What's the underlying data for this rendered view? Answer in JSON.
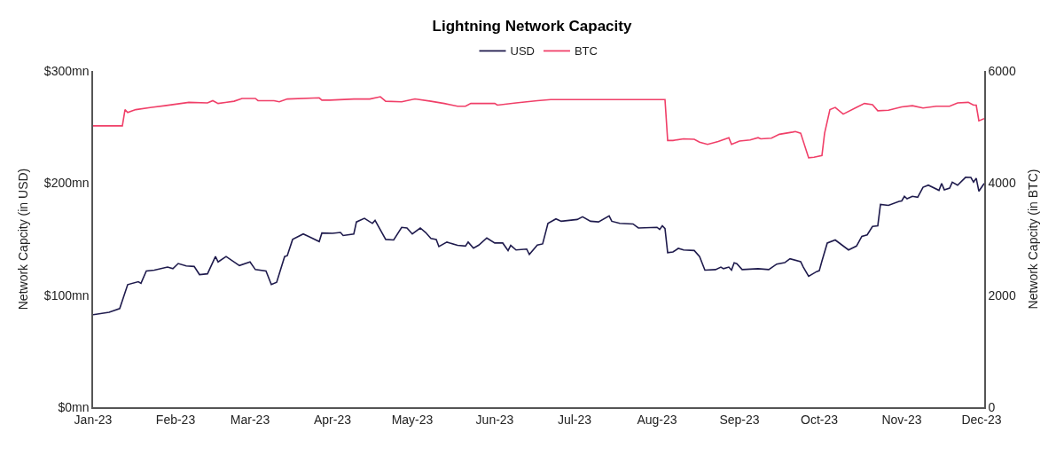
{
  "chart_data": {
    "type": "line",
    "title": "Lightning Network Capacity",
    "ylabel": "Network Capcity (in USD)",
    "y2label": "Network Capcity (in BTC)",
    "xlim": [
      "2023-01-01",
      "2023-12-02"
    ],
    "xticks": [
      {
        "value": "2023-01-01",
        "label": "Jan-23"
      },
      {
        "value": "2023-02-01",
        "label": "Feb-23"
      },
      {
        "value": "2023-03-01",
        "label": "Mar-23"
      },
      {
        "value": "2023-04-01",
        "label": "Apr-23"
      },
      {
        "value": "2023-05-01",
        "label": "May-23"
      },
      {
        "value": "2023-06-01",
        "label": "Jun-23"
      },
      {
        "value": "2023-07-01",
        "label": "Jul-23"
      },
      {
        "value": "2023-08-01",
        "label": "Aug-23"
      },
      {
        "value": "2023-09-01",
        "label": "Sep-23"
      },
      {
        "value": "2023-10-01",
        "label": "Oct-23"
      },
      {
        "value": "2023-11-01",
        "label": "Nov-23"
      },
      {
        "value": "2023-12-01",
        "label": "Dec-23"
      }
    ],
    "ylim": [
      0,
      300
    ],
    "yticks": [
      {
        "value": 0,
        "label": "$0mn"
      },
      {
        "value": 100,
        "label": "$100mn"
      },
      {
        "value": 200,
        "label": "$200mn"
      },
      {
        "value": 300,
        "label": "$300mn"
      }
    ],
    "y2lim": [
      0,
      6000
    ],
    "y2ticks": [
      0,
      2000,
      4000,
      6000
    ],
    "legend": "top",
    "marker": "none",
    "line_style": "solid",
    "series": [
      {
        "name": "USD",
        "color": "#1f1b4d",
        "x": [
          "2023-01-01",
          "2023-01-07",
          "2023-01-11",
          "2023-01-14",
          "2023-01-18",
          "2023-01-19",
          "2023-01-21",
          "2023-01-24",
          "2023-01-29",
          "2023-01-31",
          "2023-02-02",
          "2023-02-05",
          "2023-02-08",
          "2023-02-10",
          "2023-02-13",
          "2023-02-16",
          "2023-02-17",
          "2023-02-20",
          "2023-02-25",
          "2023-03-01",
          "2023-03-03",
          "2023-03-07",
          "2023-03-09",
          "2023-03-11",
          "2023-03-14",
          "2023-03-15",
          "2023-03-17",
          "2023-03-21",
          "2023-03-23",
          "2023-03-27",
          "2023-03-28",
          "2023-04-01",
          "2023-04-04",
          "2023-04-05",
          "2023-04-09",
          "2023-04-10",
          "2023-04-13",
          "2023-04-16",
          "2023-04-17",
          "2023-04-21",
          "2023-04-24",
          "2023-04-27",
          "2023-04-29",
          "2023-05-01",
          "2023-05-04",
          "2023-05-06",
          "2023-05-08",
          "2023-05-10",
          "2023-05-11",
          "2023-05-14",
          "2023-05-18",
          "2023-05-21",
          "2023-05-22",
          "2023-05-24",
          "2023-05-26",
          "2023-05-29",
          "2023-06-01",
          "2023-06-04",
          "2023-06-06",
          "2023-06-07",
          "2023-06-09",
          "2023-06-13",
          "2023-06-14",
          "2023-06-17",
          "2023-06-19",
          "2023-06-21",
          "2023-06-24",
          "2023-06-26",
          "2023-06-29",
          "2023-07-02",
          "2023-07-04",
          "2023-07-07",
          "2023-07-10",
          "2023-07-14",
          "2023-07-15",
          "2023-07-18",
          "2023-07-23",
          "2023-07-25",
          "2023-08-01",
          "2023-08-02",
          "2023-08-03",
          "2023-08-04",
          "2023-08-05",
          "2023-08-07",
          "2023-08-09",
          "2023-08-11",
          "2023-08-15",
          "2023-08-17",
          "2023-08-19",
          "2023-08-23",
          "2023-08-25",
          "2023-08-26",
          "2023-08-28",
          "2023-08-29",
          "2023-08-30",
          "2023-08-31",
          "2023-09-02",
          "2023-09-08",
          "2023-09-12",
          "2023-09-15",
          "2023-09-18",
          "2023-09-20",
          "2023-09-24",
          "2023-09-25",
          "2023-09-27",
          "2023-09-30",
          "2023-10-01",
          "2023-10-02",
          "2023-10-04",
          "2023-10-07",
          "2023-10-12",
          "2023-10-15",
          "2023-10-17",
          "2023-10-19",
          "2023-10-21",
          "2023-10-23",
          "2023-10-24",
          "2023-10-27",
          "2023-10-31",
          "2023-11-01",
          "2023-11-02",
          "2023-11-03",
          "2023-11-05",
          "2023-11-07",
          "2023-11-09",
          "2023-11-11",
          "2023-11-15",
          "2023-11-16",
          "2023-11-17",
          "2023-11-19",
          "2023-11-20",
          "2023-11-22",
          "2023-11-25",
          "2023-11-27",
          "2023-11-28",
          "2023-11-29",
          "2023-11-30",
          "2023-12-02"
        ],
        "values": [
          82.5,
          84.7,
          88,
          109.4,
          112,
          110.5,
          121.5,
          122.3,
          125,
          123.6,
          128.2,
          126,
          125.6,
          118.3,
          119,
          134.4,
          129.6,
          134.4,
          126.4,
          129.6,
          122.8,
          121.5,
          109.4,
          111.5,
          134.4,
          135.2,
          149.7,
          154.6,
          152.4,
          147.8,
          155.4,
          155.1,
          155.9,
          153.2,
          154.6,
          165.3,
          168.5,
          164,
          166.7,
          149.7,
          149.2,
          160.5,
          159.9,
          154.6,
          159.9,
          155.9,
          150.5,
          149.7,
          143.3,
          147.3,
          144.4,
          143.8,
          147.3,
          141.9,
          144.6,
          151,
          146.5,
          146.5,
          139.8,
          144.4,
          140.3,
          141.1,
          136.3,
          144.6,
          145.7,
          164,
          168,
          165.9,
          166.7,
          167.5,
          169.9,
          165.9,
          165.3,
          170.7,
          165.9,
          164,
          163.5,
          159.9,
          160.5,
          158.6,
          161.9,
          159.4,
          137.9,
          138.5,
          141.7,
          140.3,
          139.8,
          134.4,
          122.3,
          122.8,
          125,
          123.6,
          125,
          122.3,
          128.8,
          128,
          122.8,
          123.6,
          122.8,
          127.7,
          129,
          132.5,
          129.8,
          125,
          116.9,
          121,
          121.8,
          130.4,
          146.5,
          149.2,
          140.3,
          143.8,
          152.4,
          153.8,
          161.3,
          161.9,
          180.9,
          180.1,
          183.6,
          184.1,
          188.2,
          186,
          188.2,
          187.3,
          196.2,
          198.1,
          193.5,
          199.7,
          194,
          195.4,
          200.8,
          198.1,
          205.1,
          205,
          200.8,
          204.3,
          192.7,
          199.7
        ]
      },
      {
        "name": "BTC",
        "color": "#f03f68",
        "axis": "y2",
        "x": [
          "2023-01-01",
          "2023-01-12",
          "2023-01-13",
          "2023-01-14",
          "2023-01-17",
          "2023-01-23",
          "2023-01-28",
          "2023-02-06",
          "2023-02-13",
          "2023-02-15",
          "2023-02-17",
          "2023-02-23",
          "2023-02-26",
          "2023-03-03",
          "2023-03-04",
          "2023-03-10",
          "2023-03-12",
          "2023-03-15",
          "2023-03-27",
          "2023-03-28",
          "2023-03-31",
          "2023-04-09",
          "2023-04-15",
          "2023-04-19",
          "2023-04-21",
          "2023-04-27",
          "2023-05-02",
          "2023-05-08",
          "2023-05-13",
          "2023-05-16",
          "2023-05-18",
          "2023-05-21",
          "2023-05-23",
          "2023-06-01",
          "2023-06-02",
          "2023-06-09",
          "2023-06-17",
          "2023-06-22",
          "2023-08-04",
          "2023-08-05",
          "2023-08-07",
          "2023-08-11",
          "2023-08-15",
          "2023-08-17",
          "2023-08-20",
          "2023-08-24",
          "2023-08-28",
          "2023-08-29",
          "2023-09-01",
          "2023-09-05",
          "2023-09-08",
          "2023-09-09",
          "2023-09-13",
          "2023-09-16",
          "2023-09-21",
          "2023-09-22",
          "2023-09-24",
          "2023-09-27",
          "2023-09-29",
          "2023-10-02",
          "2023-10-03",
          "2023-10-05",
          "2023-10-07",
          "2023-10-10",
          "2023-10-15",
          "2023-10-18",
          "2023-10-21",
          "2023-10-23",
          "2023-10-27",
          "2023-11-01",
          "2023-11-05",
          "2023-11-09",
          "2023-11-14",
          "2023-11-19",
          "2023-11-22",
          "2023-11-26",
          "2023-11-28",
          "2023-11-29",
          "2023-11-30",
          "2023-12-02"
        ],
        "values": [
          5020,
          5020,
          5310,
          5260,
          5310,
          5350,
          5380,
          5440,
          5430,
          5470,
          5420,
          5460,
          5510,
          5510,
          5470,
          5470,
          5450,
          5500,
          5520,
          5480,
          5480,
          5500,
          5500,
          5540,
          5460,
          5450,
          5500,
          5460,
          5420,
          5390,
          5370,
          5370,
          5420,
          5420,
          5390,
          5430,
          5470,
          5490,
          5490,
          4760,
          4760,
          4790,
          4780,
          4730,
          4690,
          4740,
          4810,
          4690,
          4750,
          4770,
          4810,
          4790,
          4800,
          4870,
          4910,
          4920,
          4890,
          4450,
          4460,
          4490,
          4890,
          5310,
          5350,
          5230,
          5350,
          5420,
          5400,
          5290,
          5300,
          5360,
          5380,
          5340,
          5370,
          5370,
          5430,
          5440,
          5390,
          5390,
          5110,
          5150
        ]
      }
    ]
  }
}
